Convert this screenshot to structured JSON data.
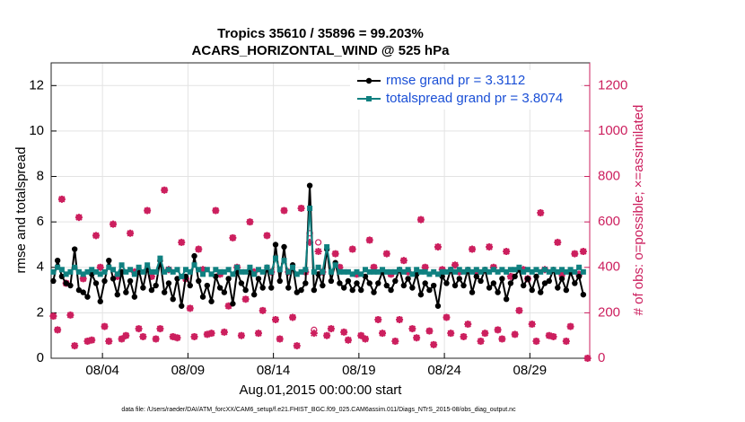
{
  "chart_data": {
    "type": "line",
    "title": "Tropics 35610 / 35896 = 99.203%",
    "subtitle": "ACARS_HORIZONTAL_WIND @ 525 hPa",
    "x_label": "Aug.01,2015 00:00:00 start",
    "y_label": "rmse and totalspread",
    "y2_label": "# of obs: o=possible; ×=assimilated",
    "footnote": "data file: /Users/raeder/DAI/ATM_forcXX/CAM6_setup/f.e21.FHIST_BGC.f09_025.CAM6assim.011/Diags_NTrS_2015-08/obs_diag_output.nc",
    "grid": true,
    "legend": "upper right",
    "xlim": [
      0,
      31.5
    ],
    "xticks": [
      {
        "value": 3,
        "label": "08/04"
      },
      {
        "value": 8,
        "label": "08/09"
      },
      {
        "value": 13,
        "label": "08/14"
      },
      {
        "value": 18,
        "label": "08/19"
      },
      {
        "value": 23,
        "label": "08/24"
      },
      {
        "value": 28,
        "label": "08/29"
      }
    ],
    "ylim": [
      0,
      13
    ],
    "yticks": [
      0,
      2,
      4,
      6,
      8,
      10,
      12
    ],
    "y2lim": [
      0,
      1300
    ],
    "y2ticks": [
      0,
      200,
      400,
      600,
      800,
      1000,
      1200
    ],
    "y2color": "#cc1f5e",
    "x": [
      0.125,
      0.375,
      0.625,
      0.875,
      1.125,
      1.375,
      1.625,
      1.875,
      2.125,
      2.375,
      2.625,
      2.875,
      3.125,
      3.375,
      3.625,
      3.875,
      4.125,
      4.375,
      4.625,
      4.875,
      5.125,
      5.375,
      5.625,
      5.875,
      6.125,
      6.375,
      6.625,
      6.875,
      7.125,
      7.375,
      7.625,
      7.875,
      8.125,
      8.375,
      8.625,
      8.875,
      9.125,
      9.375,
      9.625,
      9.875,
      10.125,
      10.375,
      10.625,
      10.875,
      11.125,
      11.375,
      11.625,
      11.875,
      12.125,
      12.375,
      12.625,
      12.875,
      13.125,
      13.375,
      13.625,
      13.875,
      14.125,
      14.375,
      14.625,
      14.875,
      15.125,
      15.375,
      15.625,
      15.875,
      16.125,
      16.375,
      16.625,
      16.875,
      17.125,
      17.375,
      17.625,
      17.875,
      18.125,
      18.375,
      18.625,
      18.875,
      19.125,
      19.375,
      19.625,
      19.875,
      20.125,
      20.375,
      20.625,
      20.875,
      21.125,
      21.375,
      21.625,
      21.875,
      22.125,
      22.375,
      22.625,
      22.875,
      23.125,
      23.375,
      23.625,
      23.875,
      24.125,
      24.375,
      24.625,
      24.875,
      25.125,
      25.375,
      25.625,
      25.875,
      26.125,
      26.375,
      26.625,
      26.875,
      27.125,
      27.375,
      27.625,
      27.875,
      28.125,
      28.375,
      28.625,
      28.875,
      29.125,
      29.375,
      29.625,
      29.875,
      30.125,
      30.375,
      30.625,
      30.875,
      31.125,
      31.375
    ],
    "series": [
      {
        "name": "rmse grand pr = 3.3112",
        "color": "#000000",
        "marker": "circle-filled",
        "values": [
          3.4,
          4.3,
          3.6,
          3.3,
          3.2,
          4.8,
          3.0,
          2.9,
          2.7,
          3.7,
          3.3,
          2.5,
          3.4,
          4.3,
          3.5,
          2.8,
          3.8,
          2.9,
          3.4,
          2.7,
          3.9,
          3.1,
          4.0,
          3.0,
          3.2,
          4.3,
          2.9,
          3.3,
          2.6,
          3.5,
          2.3,
          3.6,
          3.2,
          4.5,
          3.4,
          2.7,
          3.2,
          2.5,
          3.6,
          3.1,
          2.9,
          3.5,
          2.4,
          3.8,
          3.3,
          3.0,
          3.9,
          2.8,
          3.5,
          3.1,
          4.0,
          3.1,
          5.0,
          3.4,
          4.9,
          3.1,
          4.1,
          2.9,
          3.0,
          3.3,
          7.6,
          3.0,
          3.7,
          3.2,
          4.8,
          3.4,
          4.2,
          3.3,
          3.1,
          3.4,
          3.0,
          3.3,
          3.0,
          3.6,
          3.3,
          2.9,
          3.3,
          3.8,
          3.2,
          3.0,
          3.4,
          3.9,
          3.2,
          3.5,
          3.1,
          3.7,
          2.8,
          3.3,
          3.0,
          3.2,
          2.3,
          3.6,
          3.3,
          3.9,
          3.2,
          3.5,
          3.2,
          3.9,
          2.9,
          3.6,
          3.4,
          3.9,
          3.1,
          3.3,
          2.9,
          3.5,
          2.6,
          3.3,
          3.6,
          3.9,
          3.2,
          3.5,
          3.0,
          3.6,
          2.9,
          3.3,
          3.4,
          3.9,
          3.1,
          3.5,
          3.0,
          3.8,
          3.3,
          3.6,
          2.8,
          null
        ]
      },
      {
        "name": "totalspread grand pr = 3.8074",
        "color": "#0f8080",
        "marker": "square-filled",
        "values": [
          3.8,
          4.0,
          3.9,
          3.7,
          3.8,
          4.0,
          3.8,
          3.7,
          3.8,
          3.9,
          3.8,
          3.7,
          3.8,
          4.0,
          3.9,
          3.7,
          4.1,
          3.8,
          3.9,
          3.7,
          4.0,
          3.8,
          4.1,
          3.8,
          3.8,
          4.4,
          3.8,
          3.9,
          3.8,
          3.9,
          3.6,
          3.9,
          3.8,
          4.1,
          3.9,
          3.7,
          3.9,
          3.7,
          3.9,
          3.8,
          3.8,
          3.9,
          3.7,
          4.0,
          3.8,
          3.8,
          4.0,
          3.7,
          3.9,
          3.8,
          4.0,
          3.8,
          4.4,
          3.9,
          4.3,
          3.8,
          4.0,
          3.7,
          3.8,
          3.9,
          6.6,
          3.8,
          4.0,
          3.8,
          4.9,
          3.8,
          4.1,
          3.8,
          3.8,
          3.8,
          3.7,
          3.8,
          3.7,
          3.9,
          3.8,
          3.8,
          3.8,
          3.9,
          3.8,
          3.8,
          3.8,
          3.9,
          3.8,
          3.9,
          3.7,
          3.9,
          3.8,
          3.8,
          3.7,
          3.8,
          3.7,
          3.8,
          3.8,
          3.9,
          3.8,
          3.9,
          3.8,
          3.9,
          3.8,
          3.9,
          3.8,
          3.9,
          3.8,
          3.9,
          3.8,
          3.9,
          3.8,
          3.9,
          3.9,
          4.0,
          3.8,
          3.9,
          3.8,
          3.9,
          3.8,
          3.9,
          3.8,
          3.9,
          3.8,
          3.9,
          3.8,
          3.9,
          3.8,
          4.0,
          3.8,
          null
        ]
      },
      {
        "axis": "y2",
        "color": "#cc1f5e",
        "marker": "circle-open",
        "values": [
          185,
          125,
          700,
          330,
          190,
          55,
          620,
          350,
          75,
          80,
          540,
          400,
          140,
          75,
          590,
          360,
          85,
          100,
          550,
          380,
          130,
          95,
          650,
          360,
          85,
          130,
          740,
          390,
          95,
          90,
          510,
          350,
          220,
          95,
          480,
          390,
          105,
          110,
          650,
          370,
          115,
          230,
          530,
          400,
          100,
          260,
          600,
          380,
          110,
          210,
          540,
          380,
          170,
          85,
          650,
          380,
          180,
          55,
          660,
          380,
          550,
          125,
          510,
          380,
          100,
          130,
          460,
          400,
          115,
          80,
          480,
          370,
          100,
          85,
          520,
          400,
          170,
          110,
          460,
          370,
          75,
          170,
          430,
          380,
          130,
          90,
          610,
          400,
          120,
          60,
          490,
          390,
          180,
          110,
          410,
          380,
          95,
          150,
          480,
          380,
          75,
          110,
          490,
          400,
          125,
          85,
          470,
          360,
          105,
          210,
          390,
          350,
          150,
          75,
          640,
          390,
          100,
          95,
          510,
          370,
          75,
          140,
          460,
          370,
          470,
          0
        ]
      },
      {
        "axis": "y2",
        "color": "#cc1f5e",
        "marker": "asterisk",
        "values": [
          185,
          125,
          700,
          330,
          190,
          55,
          620,
          350,
          75,
          80,
          540,
          400,
          140,
          75,
          590,
          360,
          85,
          100,
          550,
          380,
          130,
          95,
          650,
          360,
          85,
          130,
          740,
          390,
          95,
          90,
          510,
          350,
          220,
          95,
          480,
          390,
          105,
          110,
          650,
          370,
          115,
          230,
          530,
          400,
          100,
          260,
          600,
          380,
          110,
          210,
          540,
          380,
          170,
          85,
          650,
          380,
          180,
          55,
          660,
          380,
          510,
          110,
          470,
          380,
          100,
          130,
          460,
          400,
          115,
          80,
          480,
          370,
          100,
          85,
          520,
          400,
          170,
          110,
          460,
          370,
          75,
          170,
          430,
          380,
          130,
          90,
          610,
          400,
          120,
          60,
          490,
          390,
          180,
          110,
          410,
          380,
          95,
          150,
          480,
          380,
          75,
          110,
          490,
          400,
          125,
          85,
          470,
          360,
          105,
          210,
          390,
          350,
          150,
          75,
          640,
          390,
          100,
          95,
          510,
          370,
          75,
          140,
          460,
          370,
          470,
          0
        ]
      }
    ]
  }
}
